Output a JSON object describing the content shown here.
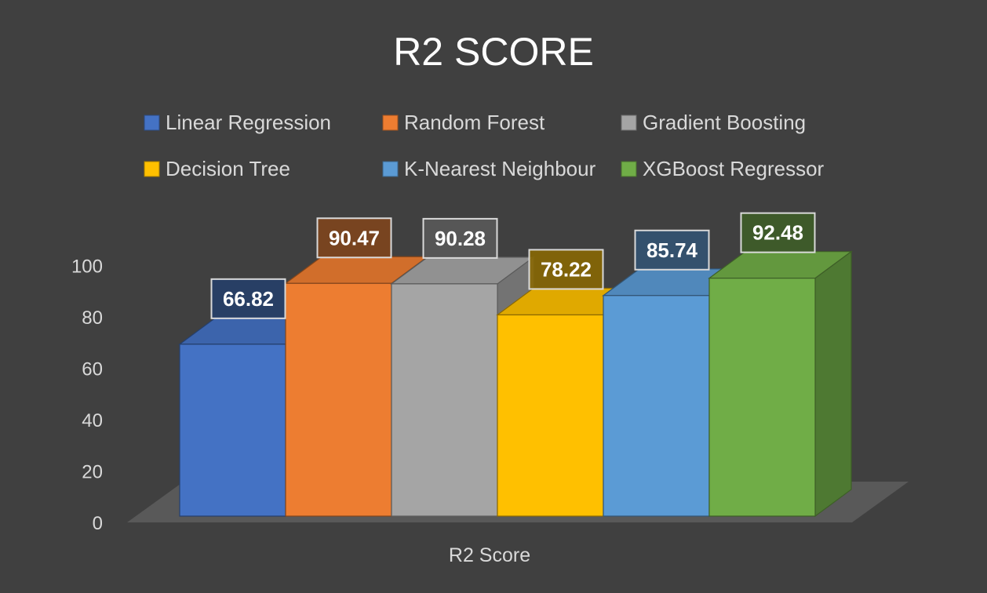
{
  "chart_data": {
    "type": "bar",
    "title": "R2 SCORE",
    "categories": [
      "R2 Score"
    ],
    "xlabel": "R2 Score",
    "ylabel": "",
    "ylim": [
      0,
      100
    ],
    "yticks": [
      0,
      20,
      40,
      60,
      80,
      100
    ],
    "ytick_labels": [
      "0",
      "20",
      "40",
      "60",
      "80",
      "100"
    ],
    "legend_position": "top",
    "series": [
      {
        "name": "Linear Regression",
        "values": [
          66.82
        ],
        "label": "66.82",
        "color": "#4472c4"
      },
      {
        "name": "Random Forest",
        "values": [
          90.47
        ],
        "label": "90.47",
        "color": "#ed7d31"
      },
      {
        "name": "Gradient Boosting",
        "values": [
          90.28
        ],
        "label": "90.28",
        "color": "#a5a5a5"
      },
      {
        "name": "Decision Tree",
        "values": [
          78.22
        ],
        "label": "78.22",
        "color": "#ffc000"
      },
      {
        "name": "K-Nearest Neighbour",
        "values": [
          85.74
        ],
        "label": "85.74",
        "color": "#5b9bd5"
      },
      {
        "name": "XGBoost Regressor",
        "values": [
          92.48
        ],
        "label": "92.48",
        "color": "#70ad47"
      }
    ]
  }
}
